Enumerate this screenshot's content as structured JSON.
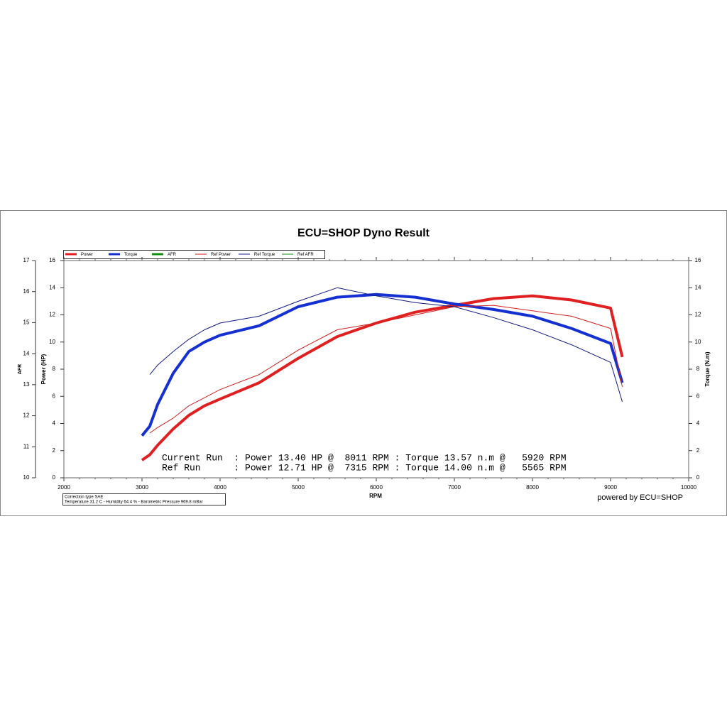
{
  "chart_data": {
    "type": "line",
    "title": "ECU=SHOP Dyno Result",
    "xlabel": "RPM",
    "ylabel": "Power (HP)",
    "y2label": "Torque (N.m)",
    "y3label": "AFR",
    "x": [
      3000,
      3100,
      3200,
      3400,
      3600,
      3800,
      4000,
      4500,
      5000,
      5500,
      6000,
      6500,
      7000,
      7500,
      8000,
      8500,
      9000,
      9150
    ],
    "xlim": [
      2000,
      10000
    ],
    "xticks": [
      2000,
      3000,
      4000,
      5000,
      6000,
      7000,
      8000,
      9000,
      10000
    ],
    "ylim": [
      0,
      16
    ],
    "yticks": [
      0,
      2,
      4,
      6,
      8,
      10,
      12,
      14,
      16
    ],
    "y2lim": [
      0,
      16
    ],
    "y2ticks": [
      0,
      2,
      4,
      6,
      8,
      10,
      12,
      14,
      16
    ],
    "y3lim": [
      10,
      17
    ],
    "y3ticks": [
      10,
      11,
      12,
      13,
      14,
      15,
      16,
      17
    ],
    "series": [
      {
        "name": "Power",
        "color": "#e02020",
        "width": 4,
        "values": [
          1.3,
          1.7,
          2.4,
          3.6,
          4.6,
          5.3,
          5.8,
          7.0,
          8.8,
          10.4,
          11.4,
          12.2,
          12.7,
          13.2,
          13.4,
          13.1,
          12.5,
          8.9
        ]
      },
      {
        "name": "Torque",
        "color": "#1530d0",
        "width": 4,
        "axis": "y2",
        "values": [
          3.1,
          3.8,
          5.4,
          7.7,
          9.3,
          10.0,
          10.5,
          11.2,
          12.6,
          13.3,
          13.5,
          13.3,
          12.8,
          12.4,
          11.9,
          11.0,
          9.9,
          7.0
        ]
      },
      {
        "name": "AFR",
        "color": "#109010",
        "width": 4,
        "axis": "y3",
        "values": [
          null,
          null,
          null,
          null,
          null,
          null,
          null,
          null,
          null,
          null,
          null,
          null,
          null,
          null,
          null,
          null,
          null,
          null
        ]
      },
      {
        "name": "Ref Power",
        "color": "#d02020",
        "width": 1,
        "values": [
          null,
          3.3,
          3.7,
          4.4,
          5.3,
          5.9,
          6.5,
          7.6,
          9.4,
          10.9,
          11.4,
          12.0,
          12.6,
          12.7,
          12.3,
          11.9,
          11.0,
          6.7
        ]
      },
      {
        "name": "Ref Torque",
        "color": "#101880",
        "width": 1,
        "axis": "y2",
        "values": [
          null,
          7.6,
          8.3,
          9.3,
          10.2,
          10.9,
          11.4,
          11.9,
          13.0,
          14.0,
          13.4,
          12.9,
          12.6,
          11.8,
          10.9,
          9.8,
          8.5,
          5.6
        ]
      },
      {
        "name": "Ref AFR",
        "color": "#109010",
        "width": 1,
        "axis": "y3",
        "values": [
          null,
          null,
          null,
          null,
          null,
          null,
          null,
          null,
          null,
          null,
          null,
          null,
          null,
          null,
          null,
          null,
          null,
          null
        ]
      }
    ],
    "annotations": [
      "Current Run  : Power 13.40 HP @  8011 RPM : Torque 13.57 n.m @   5920 RPM",
      "Ref Run      : Power 12.71 HP @  7315 RPM : Torque 14.00 n.m @   5565 RPM"
    ],
    "correction": [
      "Correction type SAE",
      "Temperature 31.2 C - Humidity 64.4 % - Barometric Pressure 969.8 mBar"
    ],
    "footer": "powered by ECU=SHOP"
  }
}
